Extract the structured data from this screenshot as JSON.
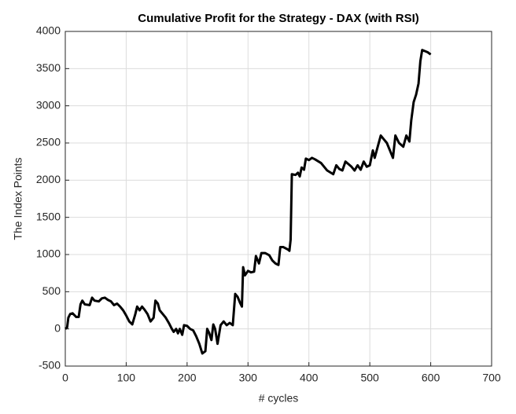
{
  "chart_data": {
    "type": "line",
    "title": "Cumulative Profit for the Strategy - DAX (with RSI)",
    "x_label": "# cycles",
    "y_label": "The Index Points",
    "xlim": [
      0,
      700
    ],
    "ylim": [
      -500,
      4000
    ],
    "xticks": [
      0,
      100,
      200,
      300,
      400,
      500,
      600,
      700
    ],
    "yticks": [
      -500,
      0,
      500,
      1000,
      1500,
      2000,
      2500,
      3000,
      3500,
      4000
    ],
    "grid": true,
    "series": [
      {
        "color": "#000000",
        "x": [
          0,
          3,
          5,
          8,
          12,
          18,
          22,
          25,
          28,
          32,
          40,
          44,
          48,
          55,
          60,
          65,
          70,
          75,
          80,
          85,
          90,
          95,
          100,
          105,
          110,
          115,
          118,
          122,
          126,
          130,
          135,
          140,
          145,
          148,
          152,
          155,
          160,
          165,
          170,
          175,
          178,
          182,
          185,
          188,
          192,
          195,
          200,
          205,
          210,
          215,
          220,
          225,
          230,
          233,
          236,
          240,
          243,
          246,
          250,
          255,
          260,
          265,
          270,
          275,
          279,
          283,
          287,
          290,
          292,
          295,
          300,
          305,
          310,
          313,
          318,
          322,
          328,
          335,
          340,
          345,
          350,
          353,
          358,
          365,
          368,
          370,
          372,
          378,
          382,
          385,
          388,
          392,
          395,
          400,
          405,
          410,
          420,
          430,
          440,
          445,
          450,
          455,
          460,
          470,
          475,
          480,
          485,
          490,
          495,
          500,
          505,
          508,
          512,
          518,
          523,
          528,
          533,
          538,
          542,
          548,
          555,
          560,
          565,
          568,
          572,
          576,
          580,
          583,
          586,
          595,
          600
        ],
        "values": [
          0,
          20,
          150,
          200,
          210,
          160,
          160,
          330,
          380,
          330,
          320,
          420,
          380,
          370,
          410,
          420,
          390,
          370,
          320,
          340,
          300,
          250,
          180,
          100,
          60,
          200,
          300,
          250,
          300,
          260,
          200,
          100,
          150,
          380,
          340,
          250,
          200,
          150,
          80,
          0,
          -40,
          0,
          -60,
          0,
          -80,
          50,
          40,
          0,
          -20,
          -100,
          -200,
          -330,
          -300,
          0,
          -50,
          -150,
          60,
          0,
          -200,
          50,
          100,
          50,
          80,
          50,
          470,
          430,
          350,
          300,
          830,
          720,
          780,
          760,
          770,
          980,
          880,
          1020,
          1020,
          990,
          920,
          880,
          860,
          1100,
          1100,
          1070,
          1050,
          1200,
          2080,
          2070,
          2100,
          2050,
          2170,
          2140,
          2290,
          2270,
          2300,
          2280,
          2230,
          2130,
          2080,
          2200,
          2150,
          2130,
          2250,
          2180,
          2130,
          2200,
          2140,
          2250,
          2180,
          2200,
          2400,
          2300,
          2420,
          2600,
          2550,
          2500,
          2400,
          2300,
          2600,
          2500,
          2450,
          2600,
          2520,
          2800,
          3050,
          3150,
          3300,
          3600,
          3750,
          3720,
          3690
        ]
      }
    ]
  }
}
